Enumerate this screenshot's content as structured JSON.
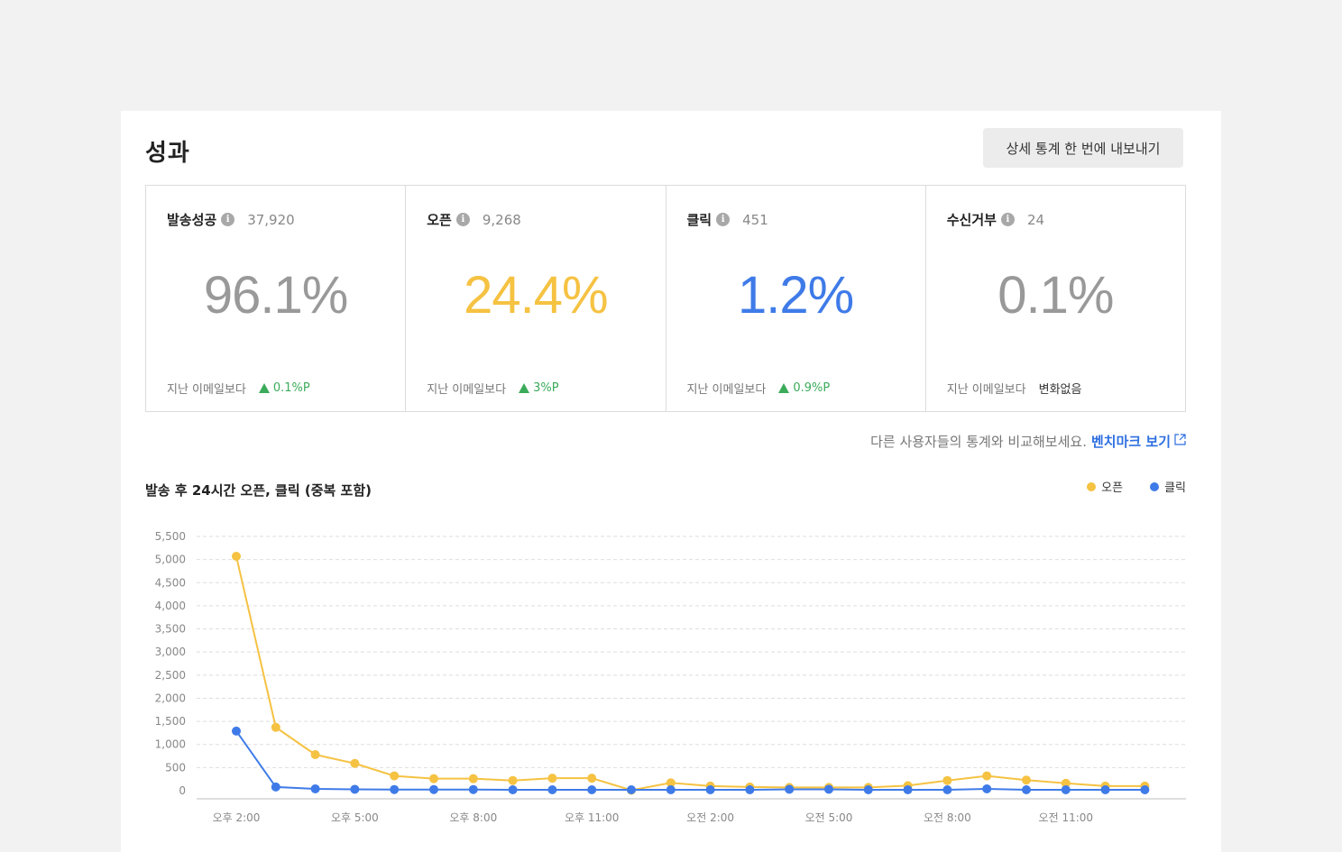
{
  "page": {
    "title": "성과",
    "export_label": "상세 통계 한 번에 내보내기"
  },
  "stats": [
    {
      "label": "발송성공",
      "count": "37,920",
      "value": "96.1%",
      "color": "#999999",
      "compare_label": "지난 이메일보다",
      "delta": "0.1%P",
      "delta_dir": "up"
    },
    {
      "label": "오픈",
      "count": "9,268",
      "value": "24.4%",
      "color": "#f5c242",
      "compare_label": "지난 이메일보다",
      "delta": "3%P",
      "delta_dir": "up"
    },
    {
      "label": "클릭",
      "count": "451",
      "value": "1.2%",
      "color": "#3f7be8",
      "compare_label": "지난 이메일보다",
      "delta": "0.9%P",
      "delta_dir": "up"
    },
    {
      "label": "수신거부",
      "count": "24",
      "value": "0.1%",
      "color": "#999999",
      "compare_label": "지난 이메일보다",
      "delta": "변화없음",
      "delta_dir": "none"
    }
  ],
  "benchmark": {
    "text": "다른 사용자들의 통계와 비교해보세요.",
    "link": "벤치마크 보기",
    "icon": "external-link-icon"
  },
  "chart_data": {
    "type": "line",
    "title": "발송 후 24시간 오픈, 클릭 (중복 포함)",
    "x_tick_labels": [
      "오후 2:00",
      "오후 5:00",
      "오후 8:00",
      "오후 11:00",
      "오전 2:00",
      "오전 5:00",
      "오전 8:00",
      "오전 11:00"
    ],
    "x_tick_every": 3,
    "ylim": [
      0,
      5500
    ],
    "yticks": [
      0,
      500,
      1000,
      1500,
      2000,
      2500,
      3000,
      3500,
      4000,
      4500,
      5000,
      5500
    ],
    "ytick_labels": [
      "0",
      "500",
      "1,000",
      "1,500",
      "2,000",
      "2,500",
      "3,000",
      "3,500",
      "4,000",
      "4,500",
      "5,000",
      "5,500"
    ],
    "grid": true,
    "legend_position": "top-right",
    "series": [
      {
        "name": "오픈",
        "color": "#f5c242",
        "values": [
          5070,
          1370,
          780,
          590,
          320,
          260,
          260,
          220,
          270,
          270,
          10,
          170,
          100,
          80,
          70,
          70,
          70,
          110,
          220,
          320,
          230,
          160,
          100,
          100
        ]
      },
      {
        "name": "클릭",
        "color": "#3f7be8",
        "values": [
          1290,
          80,
          40,
          30,
          25,
          25,
          25,
          20,
          20,
          20,
          20,
          20,
          20,
          20,
          30,
          30,
          20,
          20,
          20,
          40,
          20,
          20,
          20,
          20
        ]
      }
    ]
  }
}
